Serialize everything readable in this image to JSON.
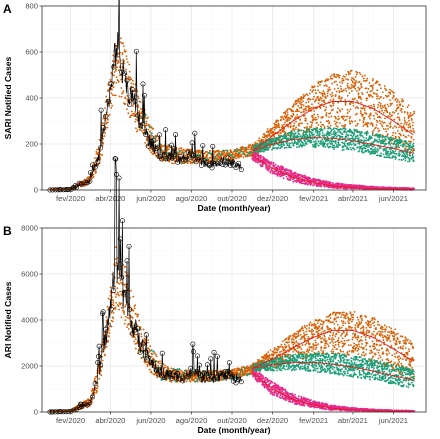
{
  "colors": {
    "obs_line": "#000000",
    "obs_point": "#000000",
    "orange": "#d95f02",
    "green": "#1b9e77",
    "pink": "#e7298a",
    "median_line": "#e41a1c",
    "grid_major": "#ebebeb",
    "grid_minor": "#f5f5f5",
    "panel_border": "#333333"
  },
  "chart_data": [
    {
      "panel": "A",
      "type": "scatter",
      "ylabel": "SARI Notified Cases",
      "xlabel": "Date (month/year)",
      "x_range": [
        "2019-12-20",
        "2021-07-20"
      ],
      "ylim": [
        0,
        800
      ],
      "y_ticks": [
        0,
        200,
        400,
        600,
        800
      ],
      "x_ticks": [
        {
          "date": "2020-02-01",
          "label": "fev/2020"
        },
        {
          "date": "2020-04-01",
          "label": "abr/2020"
        },
        {
          "date": "2020-06-01",
          "label": "jun/2020"
        },
        {
          "date": "2020-08-01",
          "label": "ago/2020"
        },
        {
          "date": "2020-10-01",
          "label": "out/2020"
        },
        {
          "date": "2020-12-01",
          "label": "dez/2020"
        },
        {
          "date": "2021-02-01",
          "label": "fev/2021"
        },
        {
          "date": "2021-04-01",
          "label": "abr/2021"
        },
        {
          "date": "2021-06-01",
          "label": "jun/2021"
        }
      ],
      "grid": true,
      "observed": {
        "dates": [
          "2020-01-01",
          "2020-02-01",
          "2020-03-01",
          "2020-03-15",
          "2020-04-01",
          "2020-04-10",
          "2020-04-15",
          "2020-04-20",
          "2020-04-25",
          "2020-05-01",
          "2020-05-15",
          "2020-06-01",
          "2020-06-15",
          "2020-07-01",
          "2020-07-15",
          "2020-08-01",
          "2020-08-15",
          "2020-09-01",
          "2020-09-15",
          "2020-10-01",
          "2020-10-15"
        ],
        "values": [
          0,
          2,
          40,
          150,
          420,
          640,
          580,
          500,
          470,
          420,
          300,
          200,
          160,
          140,
          130,
          150,
          120,
          110,
          130,
          120,
          100
        ]
      },
      "fitted_band": {
        "dates": [
          "2020-01-01",
          "2020-02-01",
          "2020-03-01",
          "2020-03-15",
          "2020-04-01",
          "2020-04-10",
          "2020-04-20",
          "2020-05-01",
          "2020-05-15",
          "2020-06-01",
          "2020-06-15",
          "2020-07-01",
          "2020-08-01",
          "2020-09-01",
          "2020-10-01",
          "2020-11-01"
        ],
        "lower": [
          0,
          0,
          25,
          100,
          320,
          420,
          380,
          310,
          230,
          160,
          130,
          115,
          115,
          120,
          130,
          150
        ],
        "upper": [
          5,
          8,
          60,
          210,
          520,
          690,
          640,
          540,
          400,
          280,
          220,
          190,
          175,
          170,
          175,
          200
        ]
      },
      "scenarios": [
        {
          "color_key": "orange",
          "dates": [
            "2020-11-01",
            "2020-12-01",
            "2021-01-01",
            "2021-02-01",
            "2021-03-01",
            "2021-04-01",
            "2021-05-01",
            "2021-06-01",
            "2021-07-01"
          ],
          "median": [
            170,
            235,
            300,
            355,
            385,
            385,
            355,
            300,
            240
          ],
          "lower": [
            150,
            190,
            230,
            260,
            270,
            260,
            230,
            190,
            150
          ],
          "upper": [
            195,
            285,
            380,
            460,
            510,
            520,
            490,
            430,
            350
          ]
        },
        {
          "color_key": "green",
          "dates": [
            "2020-11-01",
            "2020-12-01",
            "2021-01-01",
            "2021-02-01",
            "2021-03-01",
            "2021-04-01",
            "2021-05-01",
            "2021-06-01",
            "2021-07-01"
          ],
          "median": [
            170,
            200,
            220,
            228,
            225,
            215,
            198,
            180,
            160
          ],
          "lower": [
            155,
            175,
            185,
            185,
            178,
            168,
            152,
            135,
            120
          ],
          "upper": [
            190,
            225,
            255,
            270,
            272,
            265,
            248,
            228,
            205
          ]
        },
        {
          "color_key": "pink",
          "dates": [
            "2020-11-01",
            "2020-12-01",
            "2021-01-01",
            "2021-02-01",
            "2021-03-01",
            "2021-04-01",
            "2021-05-01",
            "2021-06-01",
            "2021-07-01"
          ],
          "median": [
            150,
            95,
            55,
            32,
            18,
            10,
            6,
            4,
            3
          ],
          "lower": [
            130,
            70,
            35,
            18,
            9,
            4,
            2,
            1,
            0
          ],
          "upper": [
            170,
            120,
            80,
            50,
            32,
            22,
            15,
            11,
            9
          ]
        }
      ]
    },
    {
      "panel": "B",
      "type": "scatter",
      "ylabel": "ARI Notified Cases",
      "xlabel": "Date (month/year)",
      "x_range": [
        "2019-12-20",
        "2021-07-20"
      ],
      "ylim": [
        0,
        8000
      ],
      "y_ticks": [
        0,
        2000,
        4000,
        6000,
        8000
      ],
      "x_ticks": [
        {
          "date": "2020-02-01",
          "label": "fev/2020"
        },
        {
          "date": "2020-04-01",
          "label": "abr/2020"
        },
        {
          "date": "2020-06-01",
          "label": "jun/2020"
        },
        {
          "date": "2020-08-01",
          "label": "ago/2020"
        },
        {
          "date": "2020-10-01",
          "label": "out/2020"
        },
        {
          "date": "2020-12-01",
          "label": "dez/2020"
        },
        {
          "date": "2021-02-01",
          "label": "fev/2021"
        },
        {
          "date": "2021-04-01",
          "label": "abr/2021"
        },
        {
          "date": "2021-06-01",
          "label": "jun/2021"
        }
      ],
      "grid": true,
      "observed": {
        "dates": [
          "2020-01-01",
          "2020-02-01",
          "2020-03-01",
          "2020-03-15",
          "2020-04-01",
          "2020-04-10",
          "2020-04-15",
          "2020-04-20",
          "2020-04-25",
          "2020-05-01",
          "2020-05-15",
          "2020-06-01",
          "2020-06-15",
          "2020-07-01",
          "2020-07-15",
          "2020-08-01",
          "2020-08-15",
          "2020-09-01",
          "2020-09-15",
          "2020-10-01",
          "2020-10-15"
        ],
        "values": [
          0,
          20,
          400,
          1600,
          4500,
          6800,
          5900,
          5000,
          4600,
          4200,
          3000,
          2100,
          1750,
          1600,
          1500,
          1700,
          1500,
          1400,
          1600,
          1500,
          1450
        ]
      },
      "fitted_band": {
        "dates": [
          "2020-01-01",
          "2020-02-01",
          "2020-03-01",
          "2020-03-15",
          "2020-04-01",
          "2020-04-10",
          "2020-04-20",
          "2020-05-01",
          "2020-05-15",
          "2020-06-01",
          "2020-06-15",
          "2020-07-01",
          "2020-08-01",
          "2020-09-01",
          "2020-10-01",
          "2020-11-01"
        ],
        "lower": [
          0,
          0,
          250,
          1100,
          3400,
          4500,
          4000,
          3300,
          2400,
          1700,
          1400,
          1300,
          1300,
          1350,
          1450,
          1650
        ],
        "upper": [
          50,
          80,
          600,
          2200,
          5600,
          7200,
          6700,
          5600,
          4100,
          2800,
          2200,
          1900,
          1800,
          1800,
          1850,
          2050
        ]
      },
      "scenarios": [
        {
          "color_key": "orange",
          "dates": [
            "2020-11-01",
            "2020-12-01",
            "2021-01-01",
            "2021-02-01",
            "2021-03-01",
            "2021-04-01",
            "2021-05-01",
            "2021-06-01",
            "2021-07-01"
          ],
          "median": [
            1900,
            2300,
            2800,
            3250,
            3550,
            3550,
            3250,
            2750,
            2200
          ],
          "lower": [
            1700,
            1900,
            2200,
            2450,
            2550,
            2450,
            2150,
            1750,
            1350
          ],
          "upper": [
            2100,
            2750,
            3450,
            4000,
            4350,
            4400,
            4150,
            3650,
            3000
          ]
        },
        {
          "color_key": "green",
          "dates": [
            "2020-11-01",
            "2020-12-01",
            "2021-01-01",
            "2021-02-01",
            "2021-03-01",
            "2021-04-01",
            "2021-05-01",
            "2021-06-01",
            "2021-07-01"
          ],
          "median": [
            1900,
            2050,
            2150,
            2150,
            2080,
            1950,
            1780,
            1580,
            1380
          ],
          "lower": [
            1750,
            1800,
            1800,
            1750,
            1650,
            1520,
            1350,
            1180,
            1000
          ],
          "upper": [
            2050,
            2300,
            2500,
            2580,
            2560,
            2460,
            2280,
            2070,
            1840
          ]
        },
        {
          "color_key": "pink",
          "dates": [
            "2020-11-01",
            "2020-12-01",
            "2021-01-01",
            "2021-02-01",
            "2021-03-01",
            "2021-04-01",
            "2021-05-01",
            "2021-06-01",
            "2021-07-01"
          ],
          "median": [
            1700,
            1000,
            550,
            300,
            160,
            90,
            55,
            35,
            25
          ],
          "lower": [
            1500,
            750,
            350,
            170,
            80,
            40,
            20,
            10,
            5
          ],
          "upper": [
            1900,
            1300,
            800,
            480,
            290,
            180,
            120,
            80,
            60
          ]
        }
      ]
    }
  ]
}
